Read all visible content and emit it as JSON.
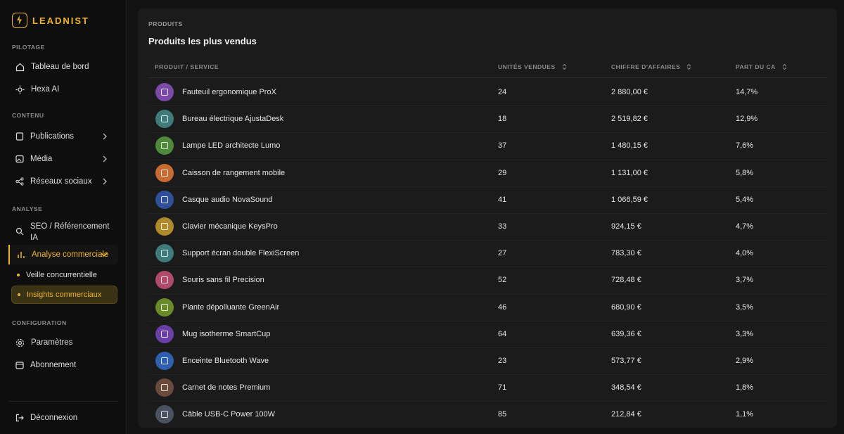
{
  "sidebar": {
    "brand": "LEADNIST",
    "sections": [
      {
        "title": "PILOTAGE",
        "items": [
          "Tableau de bord",
          "Hexa AI"
        ]
      },
      {
        "title": "CONTENU",
        "items": [
          "Publications",
          "Média",
          "Réseaux sociaux"
        ]
      },
      {
        "title": "ANALYSE",
        "items": [
          "SEO / Référencement IA",
          "Analyse commerciale"
        ],
        "subitems": [
          "Veille concurrentielle",
          "Insights commerciaux"
        ]
      },
      {
        "title": "CONFIGURATION",
        "items": [
          "Paramètres",
          "Abonnement"
        ]
      }
    ],
    "logout": "Déconnexion"
  },
  "card": {
    "eyebrow": "PRODUITS",
    "title": "Produits les plus vendus",
    "table": {
      "columns": [
        "PRODUIT / SERVICE",
        "UNITÉS VENDUES",
        "CHIFFRE D'AFFAIRES",
        "PART DU CA"
      ],
      "rows": [
        [
          "Fauteuil ergonomique ProX",
          "24",
          "2 880,00 €",
          "14,7%"
        ],
        [
          "Bureau électrique AjustaDesk",
          "18",
          "2 519,82 €",
          "12,9%"
        ],
        [
          "Lampe LED architecte Lumo",
          "37",
          "1 480,15 €",
          "7,6%"
        ],
        [
          "Caisson de rangement mobile",
          "29",
          "1 131,00 €",
          "5,8%"
        ],
        [
          "Casque audio NovaSound",
          "41",
          "1 066,59 €",
          "5,4%"
        ],
        [
          "Clavier mécanique KeysPro",
          "33",
          "924,15 €",
          "4,7%"
        ],
        [
          "Support écran double FlexiScreen",
          "27",
          "783,30 €",
          "4,0%"
        ],
        [
          "Souris sans fil Precision",
          "52",
          "728,48 €",
          "3,7%"
        ],
        [
          "Plante dépolluante GreenAir",
          "46",
          "680,90 €",
          "3,5%"
        ],
        [
          "Mug isotherme SmartCup",
          "64",
          "639,36 €",
          "3,3%"
        ],
        [
          "Enceinte Bluetooth Wave",
          "23",
          "573,77 €",
          "2,9%"
        ],
        [
          "Carnet de notes Premium",
          "71",
          "348,54 €",
          "1,8%"
        ],
        [
          "Câble USB-C Power 100W",
          "85",
          "212,84 €",
          "1,1%"
        ]
      ]
    }
  }
}
